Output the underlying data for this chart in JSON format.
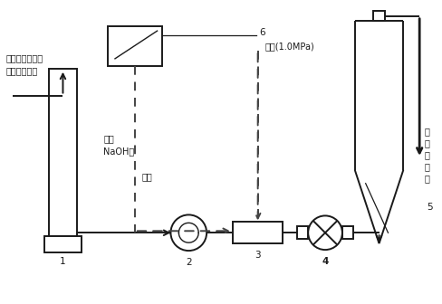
{
  "background_color": "#ffffff",
  "line_color": "#1a1a1a",
  "dashed_color": "#444444",
  "text_color": "#1a1a1a",
  "labels": {
    "input_text1": "经过蒸煮洗涤后",
    "input_text2": "的未漂蔗渣浆",
    "naoh_text1": "加入",
    "naoh_text2": "NaOH等",
    "oxygen_text": "氧气",
    "steam_text": "蒸汽(1.0MPa)",
    "label1": "1",
    "label2": "2",
    "label3": "3",
    "label4": "4",
    "label5": "5",
    "label6": "6",
    "output_text1": "去",
    "output_text2": "喷",
    "output_text3": "放",
    "output_text4": "浆",
    "output_text5": "槽"
  },
  "figsize": [
    4.88,
    3.36
  ],
  "dpi": 100
}
